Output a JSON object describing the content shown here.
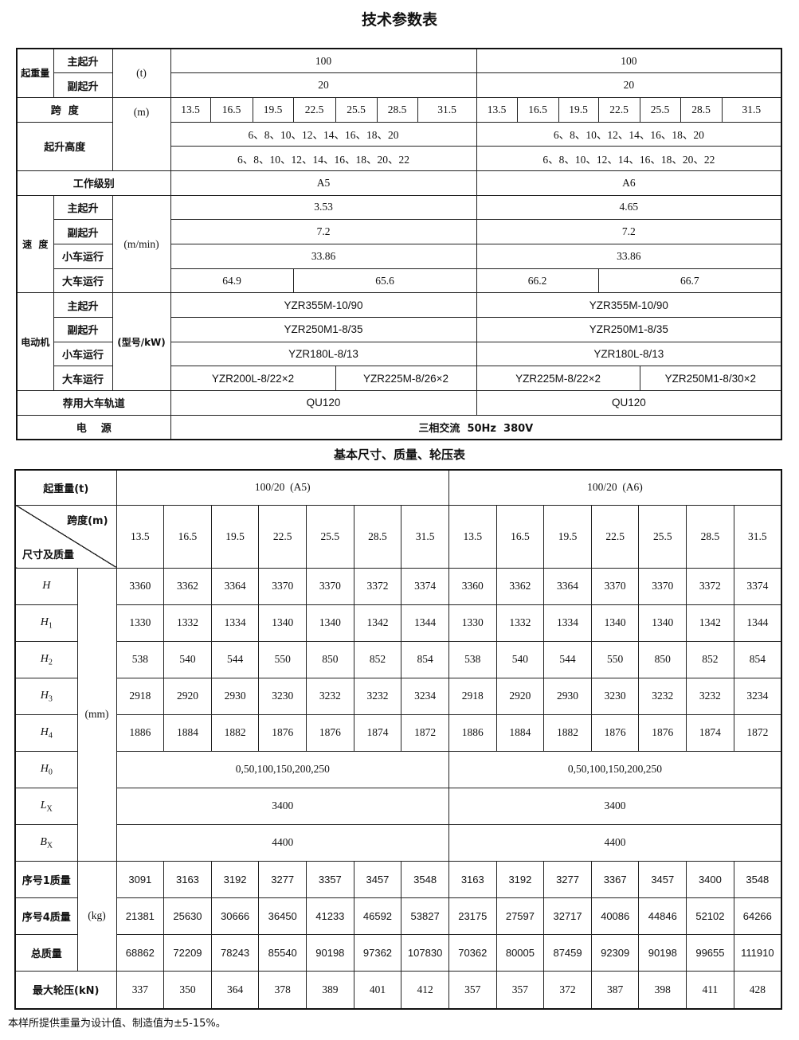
{
  "title1": "技术参数表",
  "t1": {
    "capacity": {
      "label": "起重量",
      "main": "主起升",
      "aux": "副起升",
      "unit": "(t)",
      "a5_main": "100",
      "a5_aux": "20",
      "a6_main": "100",
      "a6_aux": "20"
    },
    "span": {
      "label": "跨  度",
      "unit": "(m)",
      "values": [
        "13.5",
        "16.5",
        "19.5",
        "22.5",
        "25.5",
        "28.5",
        "31.5"
      ]
    },
    "lift_height": {
      "label": "起升高度",
      "main": "6、8、10、12、14、16、18、20",
      "aux": "6、8、10、12、14、16、18、20、22"
    },
    "duty": {
      "label": "工作级别",
      "a5": "A5",
      "a6": "A6"
    },
    "speed": {
      "label": "速  度",
      "unit": "(m/min)",
      "rows": [
        {
          "label": "主起升",
          "a5": "3.53",
          "a6": "4.65"
        },
        {
          "label": "副起升",
          "a5": "7.2",
          "a6": "7.2"
        },
        {
          "label": "小车运行",
          "a5": "33.86",
          "a6": "33.86"
        },
        {
          "label": "大车运行",
          "a5": [
            "64.9",
            "65.6"
          ],
          "a6": [
            "66.2",
            "66.7"
          ]
        }
      ]
    },
    "motor": {
      "label": "电动机",
      "unit": "(型号/kW)",
      "rows": [
        {
          "label": "主起升",
          "a5": "YZR355M-10/90",
          "a6": "YZR355M-10/90"
        },
        {
          "label": "副起升",
          "a5": "YZR250M1-8/35",
          "a6": "YZR250M1-8/35"
        },
        {
          "label": "小车运行",
          "a5": "YZR180L-8/13",
          "a6": "YZR180L-8/13"
        },
        {
          "label": "大车运行",
          "a5": [
            "YZR200L-8/22×2",
            "YZR225M-8/26×2"
          ],
          "a6": [
            "YZR225M-8/22×2",
            "YZR250M1-8/30×2"
          ]
        }
      ]
    },
    "rail": {
      "label": "荐用大车轨道",
      "a5": "QU120",
      "a6": "QU120"
    },
    "power": {
      "label": "电    源",
      "value": "三相交流  50Hz  380V"
    }
  },
  "title2": "基本尺寸、质量、轮压表",
  "t2": {
    "capacity_label": "起重量(t)",
    "groups": [
      "100/20  (A5)",
      "100/20  (A6)"
    ],
    "diag_top": "跨度(m)",
    "diag_bottom": "尺寸及质量",
    "spans": [
      "13.5",
      "16.5",
      "19.5",
      "22.5",
      "25.5",
      "28.5",
      "31.5",
      "13.5",
      "16.5",
      "19.5",
      "22.5",
      "25.5",
      "28.5",
      "31.5"
    ],
    "dim_unit": "(mm)",
    "dims": [
      {
        "sym": "H",
        "sub": "",
        "values": [
          "3360",
          "3362",
          "3364",
          "3370",
          "3370",
          "3372",
          "3374",
          "3360",
          "3362",
          "3364",
          "3370",
          "3370",
          "3372",
          "3374"
        ]
      },
      {
        "sym": "H",
        "sub": "1",
        "values": [
          "1330",
          "1332",
          "1334",
          "1340",
          "1340",
          "1342",
          "1344",
          "1330",
          "1332",
          "1334",
          "1340",
          "1340",
          "1342",
          "1344"
        ]
      },
      {
        "sym": "H",
        "sub": "2",
        "values": [
          "538",
          "540",
          "544",
          "550",
          "850",
          "852",
          "854",
          "538",
          "540",
          "544",
          "550",
          "850",
          "852",
          "854"
        ]
      },
      {
        "sym": "H",
        "sub": "3",
        "values": [
          "2918",
          "2920",
          "2930",
          "3230",
          "3232",
          "3232",
          "3234",
          "2918",
          "2920",
          "2930",
          "3230",
          "3232",
          "3232",
          "3234"
        ]
      },
      {
        "sym": "H",
        "sub": "4",
        "values": [
          "1886",
          "1884",
          "1882",
          "1876",
          "1876",
          "1874",
          "1872",
          "1886",
          "1884",
          "1882",
          "1876",
          "1876",
          "1874",
          "1872"
        ]
      }
    ],
    "merged": [
      {
        "sym": "H",
        "sub": "0",
        "a5": "0,50,100,150,200,250",
        "a6": "0,50,100,150,200,250"
      },
      {
        "sym": "L",
        "sub": "X",
        "a5": "3400",
        "a6": "3400"
      },
      {
        "sym": "B",
        "sub": "X",
        "a5": "4400",
        "a6": "4400"
      }
    ],
    "mass_unit": "(kg)",
    "mass": [
      {
        "label": "序号1质量",
        "values": [
          "3091",
          "3163",
          "3192",
          "3277",
          "3357",
          "3457",
          "3548",
          "3163",
          "3192",
          "3277",
          "3367",
          "3457",
          "3400",
          "3548"
        ]
      },
      {
        "label": "序号4质量",
        "values": [
          "21381",
          "25630",
          "30666",
          "36450",
          "41233",
          "46592",
          "53827",
          "23175",
          "27597",
          "32717",
          "40086",
          "44846",
          "52102",
          "64266"
        ]
      },
      {
        "label": "总质量",
        "values": [
          "68862",
          "72209",
          "78243",
          "85540",
          "90198",
          "97362",
          "107830",
          "70362",
          "80005",
          "87459",
          "92309",
          "90198",
          "99655",
          "111910"
        ]
      }
    ],
    "wheel": {
      "label": "最大轮压(kN)",
      "values": [
        "337",
        "350",
        "364",
        "378",
        "389",
        "401",
        "412",
        "357",
        "357",
        "372",
        "387",
        "398",
        "411",
        "428"
      ]
    }
  },
  "footnote": "本样所提供重量为设计值、制造值为±5-15%。"
}
